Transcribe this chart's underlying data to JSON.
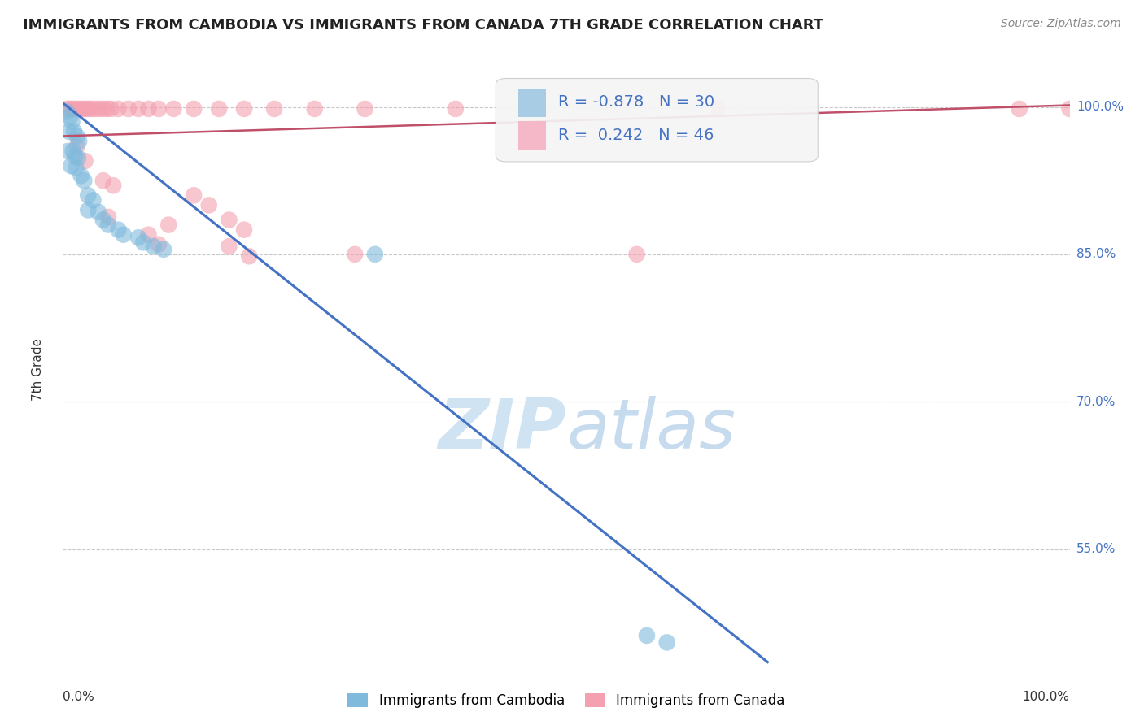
{
  "title": "IMMIGRANTS FROM CAMBODIA VS IMMIGRANTS FROM CANADA 7TH GRADE CORRELATION CHART",
  "source": "Source: ZipAtlas.com",
  "ylabel": "7th Grade",
  "watermark": "ZIPatlas",
  "legend_r_blue": "-0.878",
  "legend_n_blue": "30",
  "legend_r_pink": "0.242",
  "legend_n_pink": "46",
  "blue_color": "#7fbadc",
  "pink_color": "#f4a0b0",
  "line_blue_color": "#4472c4",
  "line_pink_color": "#c0506a",
  "xlim": [
    0.0,
    1.0
  ],
  "ylim": [
    0.43,
    1.035
  ],
  "ytick_vals": [
    1.0,
    0.85,
    0.7,
    0.55
  ],
  "ytick_labels": [
    "100.0%",
    "85.0%",
    "70.0%",
    "55.0%"
  ],
  "blue_scatter": [
    [
      0.004,
      0.995
    ],
    [
      0.007,
      0.99
    ],
    [
      0.009,
      0.985
    ],
    [
      0.006,
      0.975
    ],
    [
      0.011,
      0.975
    ],
    [
      0.014,
      0.97
    ],
    [
      0.016,
      0.965
    ],
    [
      0.005,
      0.955
    ],
    [
      0.01,
      0.955
    ],
    [
      0.012,
      0.95
    ],
    [
      0.015,
      0.948
    ],
    [
      0.008,
      0.94
    ],
    [
      0.013,
      0.938
    ],
    [
      0.018,
      0.93
    ],
    [
      0.021,
      0.925
    ],
    [
      0.025,
      0.91
    ],
    [
      0.03,
      0.905
    ],
    [
      0.025,
      0.895
    ],
    [
      0.035,
      0.893
    ],
    [
      0.04,
      0.885
    ],
    [
      0.045,
      0.88
    ],
    [
      0.055,
      0.875
    ],
    [
      0.06,
      0.87
    ],
    [
      0.075,
      0.867
    ],
    [
      0.08,
      0.862
    ],
    [
      0.09,
      0.858
    ],
    [
      0.1,
      0.855
    ],
    [
      0.31,
      0.85
    ],
    [
      0.58,
      0.462
    ],
    [
      0.6,
      0.455
    ]
  ],
  "pink_scatter": [
    [
      0.004,
      0.998
    ],
    [
      0.007,
      0.998
    ],
    [
      0.01,
      0.998
    ],
    [
      0.013,
      0.998
    ],
    [
      0.016,
      0.998
    ],
    [
      0.019,
      0.998
    ],
    [
      0.022,
      0.998
    ],
    [
      0.025,
      0.998
    ],
    [
      0.028,
      0.998
    ],
    [
      0.032,
      0.998
    ],
    [
      0.036,
      0.998
    ],
    [
      0.04,
      0.998
    ],
    [
      0.044,
      0.998
    ],
    [
      0.048,
      0.998
    ],
    [
      0.055,
      0.998
    ],
    [
      0.065,
      0.998
    ],
    [
      0.075,
      0.998
    ],
    [
      0.085,
      0.998
    ],
    [
      0.095,
      0.998
    ],
    [
      0.11,
      0.998
    ],
    [
      0.13,
      0.998
    ],
    [
      0.155,
      0.998
    ],
    [
      0.18,
      0.998
    ],
    [
      0.21,
      0.998
    ],
    [
      0.25,
      0.998
    ],
    [
      0.3,
      0.998
    ],
    [
      0.014,
      0.96
    ],
    [
      0.022,
      0.945
    ],
    [
      0.04,
      0.925
    ],
    [
      0.05,
      0.92
    ],
    [
      0.13,
      0.91
    ],
    [
      0.145,
      0.9
    ],
    [
      0.165,
      0.885
    ],
    [
      0.18,
      0.875
    ],
    [
      0.105,
      0.88
    ],
    [
      0.165,
      0.858
    ],
    [
      0.185,
      0.848
    ],
    [
      0.085,
      0.87
    ],
    [
      0.095,
      0.86
    ],
    [
      0.045,
      0.888
    ],
    [
      0.39,
      0.998
    ],
    [
      0.65,
      0.998
    ],
    [
      0.95,
      0.998
    ],
    [
      1.0,
      0.998
    ],
    [
      0.29,
      0.85
    ],
    [
      0.57,
      0.85
    ]
  ],
  "blue_line_x": [
    -0.01,
    0.7
  ],
  "blue_line_y": [
    1.012,
    0.435
  ],
  "pink_line_x": [
    -0.01,
    1.01
  ],
  "pink_line_y": [
    0.97,
    1.002
  ],
  "background_color": "#ffffff"
}
